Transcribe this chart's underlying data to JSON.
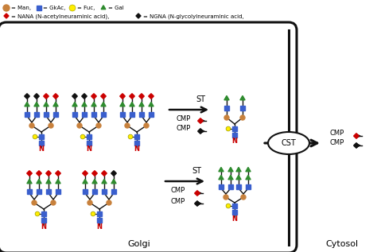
{
  "legend_line1": "= Man,■= GkAc,○= Fuc,  △= Gal",
  "legend_line2": "= NANA (N-acetylneuraminic acid), ◆= NGNA (N-glycolylneuraminic acid,",
  "golgi_label": "Golgi",
  "cytosol_label": "Cytosol",
  "cst_label": "CST",
  "colors": {
    "man": "#C8813C",
    "gkac": "#3A5FCD",
    "fuc": "#FFEE00",
    "gal": "#2E8B2E",
    "nana": "#CC0000",
    "ngna": "#111111",
    "background": "#FFFFFF",
    "cell_border": "#111111",
    "N_color": "#CC0000"
  }
}
